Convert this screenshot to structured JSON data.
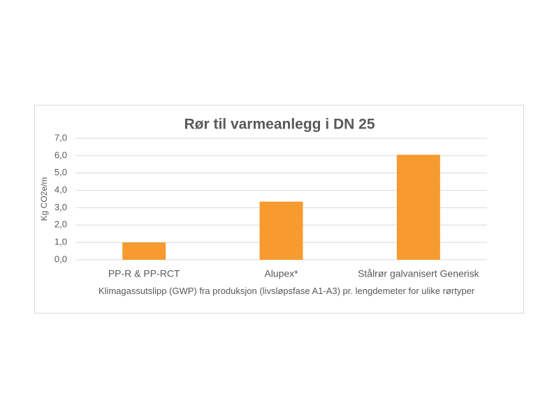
{
  "chart_data": {
    "type": "bar",
    "title": "Rør til varmeanlegg i DN 25",
    "y_label": "Kg CO2e/m",
    "x_label": "Klimagassutslipp (GWP) fra produksjon (livsløpsfase A1-A3) pr. lengdemeter for ulike rørtyper",
    "categories": [
      "PP-R & PP-RCT",
      "Alupex*",
      "Stålrør galvanisert Generisk"
    ],
    "values": [
      1.0,
      3.35,
      6.05
    ],
    "color": "#f79a2f",
    "ylim": [
      0,
      7
    ],
    "yticks": [
      {
        "value": 0,
        "label": "0,0"
      },
      {
        "value": 1,
        "label": "1,0"
      },
      {
        "value": 2,
        "label": "2,0"
      },
      {
        "value": 3,
        "label": "3,0"
      },
      {
        "value": 4,
        "label": "4,0"
      },
      {
        "value": 5,
        "label": "5,0"
      },
      {
        "value": 6,
        "label": "6,0"
      },
      {
        "value": 7,
        "label": "7,0"
      }
    ],
    "grid": true
  }
}
